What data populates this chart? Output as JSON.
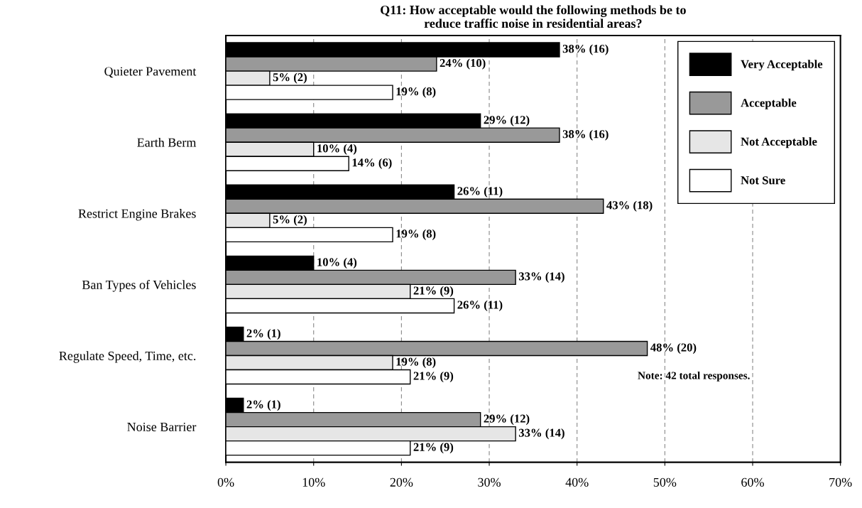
{
  "chart_data": {
    "type": "bar",
    "orientation": "horizontal",
    "title": "Q11: How acceptable would the following methods be to\nreduce traffic noise in residential areas?",
    "categories": [
      "Quieter Pavement",
      "Earth Berm",
      "Restrict Engine Brakes",
      "Ban Types of Vehicles",
      "Regulate Speed, Time, etc.",
      "Noise Barrier"
    ],
    "series": [
      {
        "name": "Very Acceptable",
        "color": "#000000",
        "values": [
          38,
          29,
          26,
          10,
          2,
          2
        ],
        "value_labels": [
          "38% (16)",
          "29% (12)",
          "26% (11)",
          "10% (4)",
          "2% (1)",
          "2% (1)"
        ]
      },
      {
        "name": "Acceptable",
        "color": "#999999",
        "values": [
          24,
          38,
          43,
          33,
          48,
          29
        ],
        "value_labels": [
          "24% (10)",
          "38% (16)",
          "43% (18)",
          "33% (14)",
          "48% (20)",
          "29% (12)"
        ]
      },
      {
        "name": "Not Acceptable",
        "color": "#e6e6e6",
        "values": [
          5,
          10,
          5,
          21,
          19,
          33
        ],
        "value_labels": [
          "5% (2)",
          "10% (4)",
          "5% (2)",
          "21% (9)",
          "19% (8)",
          "33% (14)"
        ]
      },
      {
        "name": "Not Sure",
        "color": "#ffffff",
        "values": [
          19,
          14,
          19,
          26,
          21,
          21
        ],
        "value_labels": [
          "19% (8)",
          "14% (6)",
          "19% (8)",
          "26% (11)",
          "21% (9)",
          "21% (9)"
        ]
      }
    ],
    "xlim": [
      0,
      70
    ],
    "xticks": [
      {
        "value": 0,
        "label": "0%"
      },
      {
        "value": 10,
        "label": "10%"
      },
      {
        "value": 20,
        "label": "20%"
      },
      {
        "value": 30,
        "label": "30%"
      },
      {
        "value": 40,
        "label": "40%"
      },
      {
        "value": 50,
        "label": "50%"
      },
      {
        "value": 60,
        "label": "60%"
      },
      {
        "value": 70,
        "label": "70%"
      }
    ],
    "grid": "x",
    "legend": "top right",
    "annotations": [
      "Note: 42 total responses."
    ]
  }
}
